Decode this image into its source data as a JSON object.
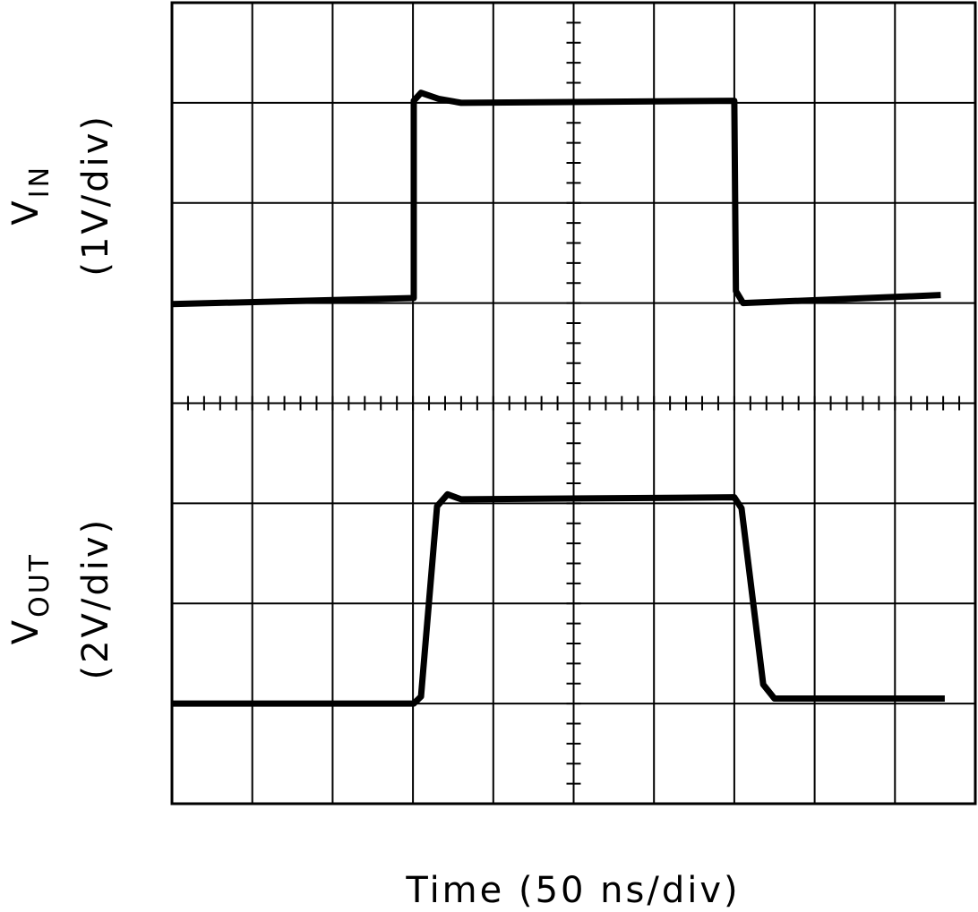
{
  "chart_data": {
    "type": "line",
    "xlabel": "Time (50 ns/div)",
    "xlim": [
      0,
      10
    ],
    "ylim": [
      0,
      8
    ],
    "xticks": [
      0,
      1,
      2,
      3,
      4,
      5,
      6,
      7,
      8,
      9,
      10
    ],
    "yticks": [
      0,
      1,
      2,
      3,
      4,
      5,
      6,
      7,
      8
    ],
    "grid": true,
    "series": [
      {
        "label": "V",
        "label_sub": "IN",
        "scale": "(1V/div)",
        "color": "#000000",
        "x": [
          0,
          3.01,
          3.01,
          3.1,
          3.32,
          3.6,
          7.0,
          7.02,
          7.11,
          9.57
        ],
        "values": [
          4.99,
          5.05,
          7.02,
          7.1,
          7.04,
          7.0,
          7.02,
          5.12,
          5.0,
          5.08
        ]
      },
      {
        "label": "V",
        "label_sub": "OUT",
        "scale": "(2V/div)",
        "color": "#000000",
        "x": [
          0,
          3.01,
          3.1,
          3.3,
          3.43,
          3.6,
          7.0,
          7.09,
          7.36,
          7.5,
          9.62
        ],
        "values": [
          1.0,
          1.0,
          1.07,
          2.97,
          3.09,
          3.04,
          3.06,
          2.95,
          1.19,
          1.05,
          1.05
        ]
      }
    ]
  }
}
